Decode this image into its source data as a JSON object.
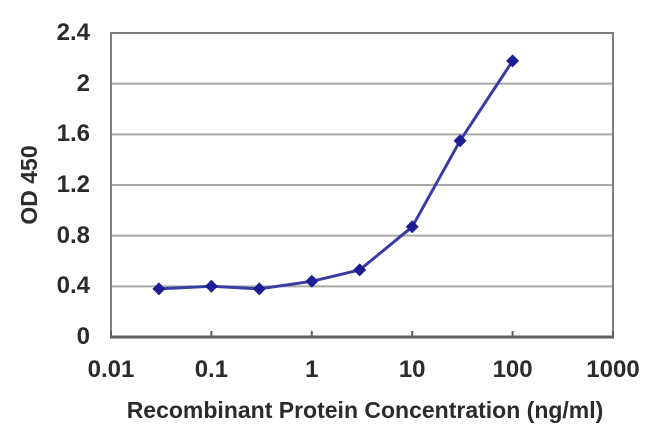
{
  "chart_data": {
    "type": "line",
    "title": "",
    "xlabel": "Recombinant Protein Concentration (ng/ml)",
    "ylabel": "OD 450",
    "x_scale": "log",
    "y_scale": "linear",
    "xlim": [
      0.01,
      1000
    ],
    "ylim": [
      0,
      2.4
    ],
    "x_ticks": [
      "0.01",
      "0.1",
      "1",
      "10",
      "100",
      "1000"
    ],
    "y_ticks": [
      "0",
      "0.4",
      "0.8",
      "1.2",
      "1.6",
      "2",
      "2.4"
    ],
    "x": [
      0.03,
      0.1,
      0.3,
      1,
      3,
      10,
      30,
      100
    ],
    "y": [
      0.38,
      0.4,
      0.38,
      0.44,
      0.53,
      0.87,
      1.55,
      2.18
    ],
    "grid": "horizontal-only",
    "legend": "none",
    "marker": "diamond",
    "colors": {
      "line": "#3b3ba4",
      "marker": "#1d1d96",
      "grid": "#a8a8a8",
      "border": "#7d7d7d",
      "axis": "#5f5f5f",
      "text": "#2b2b2b",
      "background": "#ffffff"
    }
  }
}
